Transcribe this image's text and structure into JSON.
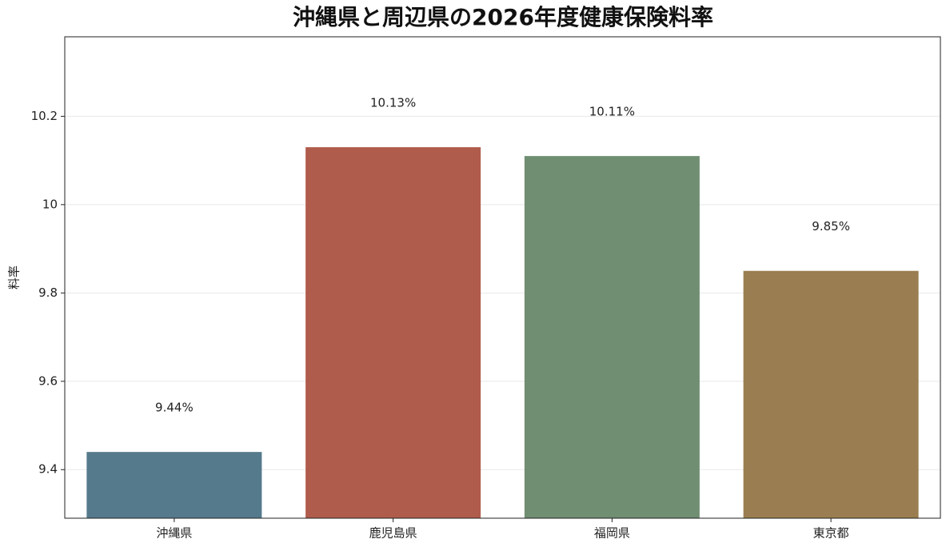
{
  "chart_data": {
    "type": "bar",
    "title": "沖縄県と周辺県の2026年度健康保険料率",
    "y_label": "料率",
    "categories": [
      "沖縄県",
      "鹿児島県",
      "福岡県",
      "東京都"
    ],
    "values": [
      9.44,
      10.13,
      10.11,
      9.85
    ],
    "value_labels": [
      "9.44%",
      "10.13%",
      "10.11%",
      "9.85%"
    ],
    "colors": [
      "#557a8c",
      "#b05c4c",
      "#708e72",
      "#9a7d50"
    ],
    "ylim": [
      9.29,
      10.38
    ],
    "yticks": [
      9.4,
      9.6,
      9.8,
      10.0,
      10.2
    ],
    "grid": true
  }
}
